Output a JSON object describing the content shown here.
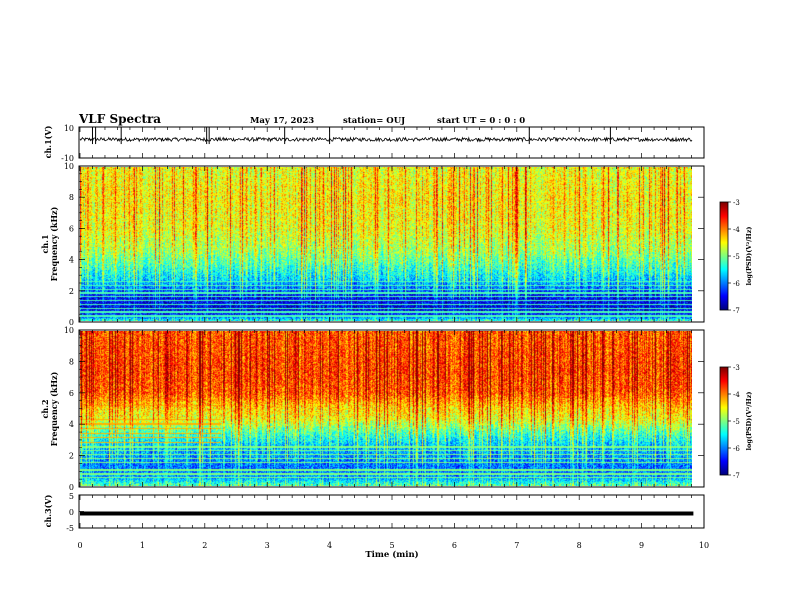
{
  "header": {
    "title": "VLF Spectra",
    "date": "May 17, 2023",
    "station": "station= OUJ",
    "start": "start  UT =   0 : 0  : 0"
  },
  "chart_data": [
    {
      "type": "line",
      "ylabel": "ch.1(V)",
      "ylim": [
        -10,
        10
      ],
      "yticks": [
        "10",
        "-10"
      ],
      "baseline": 2,
      "noise_amplitude": 1.2,
      "spikes": [
        0.2,
        0.25,
        0.66,
        2.03,
        2.07,
        3.28,
        4.0,
        7.2,
        8.5
      ],
      "xlim": [
        0,
        10
      ]
    },
    {
      "type": "heatmap",
      "ylabel": "ch.1",
      "ylabel2": "Frequency  (kHz)",
      "ylim": [
        0,
        10
      ],
      "yticks": [
        "0",
        "2",
        "4",
        "6",
        "8",
        "10"
      ],
      "xlim": [
        0,
        9.83
      ],
      "colorbar": {
        "label": "log(PSD)(V²/Hz)",
        "range": [
          -7,
          -3
        ],
        "ticks": [
          "-3",
          "-4",
          "-5",
          "-6",
          "-7"
        ]
      },
      "band_profile_kHz": [
        {
          "f": 0.0,
          "v": -5.4
        },
        {
          "f": 0.3,
          "v": -6.3
        },
        {
          "f": 0.8,
          "v": -6.6
        },
        {
          "f": 1.6,
          "v": -6.5
        },
        {
          "f": 2.2,
          "v": -6.0
        },
        {
          "f": 2.8,
          "v": -5.6
        },
        {
          "f": 3.5,
          "v": -5.3
        },
        {
          "f": 4.5,
          "v": -4.9
        },
        {
          "f": 6.0,
          "v": -4.6
        },
        {
          "f": 8.0,
          "v": -4.5
        },
        {
          "f": 10.0,
          "v": -4.6
        }
      ]
    },
    {
      "type": "heatmap",
      "ylabel": "ch.2",
      "ylabel2": "Frequency  (kHz)",
      "ylim": [
        0,
        10
      ],
      "yticks": [
        "0",
        "2",
        "4",
        "6",
        "8",
        "10"
      ],
      "xlim": [
        0,
        9.83
      ],
      "colorbar": {
        "label": "log(PSD)(V²/Hz)",
        "range": [
          -7,
          -3
        ],
        "ticks": [
          "-3",
          "-4",
          "-5",
          "-6",
          "-7"
        ]
      },
      "band_profile_kHz": [
        {
          "f": 0.0,
          "v": -5.2
        },
        {
          "f": 0.5,
          "v": -5.9
        },
        {
          "f": 1.2,
          "v": -6.1
        },
        {
          "f": 2.5,
          "v": -5.8
        },
        {
          "f": 3.5,
          "v": -5.2
        },
        {
          "f": 4.3,
          "v": -4.6
        },
        {
          "f": 5.0,
          "v": -4.4
        },
        {
          "f": 6.0,
          "v": -3.9
        },
        {
          "f": 7.5,
          "v": -3.8
        },
        {
          "f": 10.0,
          "v": -3.9
        }
      ]
    },
    {
      "type": "line",
      "ylabel": "ch.3(V)",
      "ylim": [
        -5,
        5
      ],
      "yticks": [
        "5",
        "0",
        "-5"
      ],
      "baseline": -0.6,
      "xlim": [
        0,
        9.83
      ]
    }
  ],
  "xaxis": {
    "label": "Time  (min)",
    "ticks": [
      "0",
      "1",
      "2",
      "3",
      "4",
      "5",
      "6",
      "7",
      "8",
      "9",
      "10"
    ],
    "range": [
      0,
      10
    ]
  }
}
